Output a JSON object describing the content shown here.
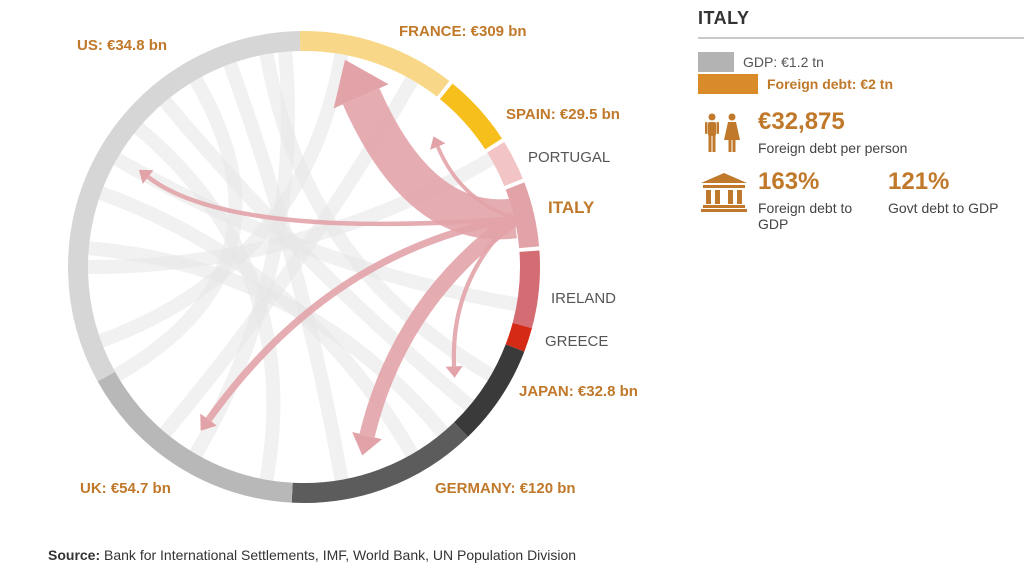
{
  "source_label": "Source:",
  "source_text": " Bank for International Settlements, IMF, World Bank, UN Population Division",
  "panel": {
    "country": "ITALY",
    "gdp_label": "GDP: €1.2 tn",
    "debt_label": "Foreign debt: €2 tn",
    "gdp_ratio": 0.6,
    "per_person_value": "€32,875",
    "per_person_label": "Foreign debt per person",
    "foreign_debt_gdp_value": "163%",
    "foreign_debt_gdp_label": "Foreign debt to GDP",
    "govt_debt_gdp_value": "121%",
    "govt_debt_gdp_label": "Govt debt to GDP",
    "icons": [
      "people-icon",
      "bank-icon"
    ]
  },
  "colors": {
    "accent": "#c0782a",
    "flow": "#e2a3a8",
    "gdp_swatch": "#b3b3b3",
    "debt_swatch": "#d98a2b"
  },
  "chart_data": {
    "type": "chord",
    "focus": "ITALY",
    "segments": [
      {
        "name": "FRANCE: €309 bn",
        "color": "#f8d888",
        "highlight": true
      },
      {
        "name": "SPAIN: €29.5 bn",
        "color": "#f7bf1c",
        "highlight": true
      },
      {
        "name": "PORTUGAL",
        "color": "#f2c4c6",
        "highlight": false
      },
      {
        "name": "ITALY",
        "color": "#e2a3a8",
        "highlight": true
      },
      {
        "name": "IRELAND",
        "color": "#d46c73",
        "highlight": false
      },
      {
        "name": "GREECE",
        "color": "#d42a16",
        "highlight": false
      },
      {
        "name": "JAPAN: €32.8 bn",
        "color": "#3a3a3a",
        "highlight": true
      },
      {
        "name": "GERMANY: €120 bn",
        "color": "#5c5c5c",
        "highlight": true
      },
      {
        "name": "UK: €54.7 bn",
        "color": "#b8b8b8",
        "highlight": true
      },
      {
        "name": "US: €34.8 bn",
        "color": "#d6d6d6",
        "highlight": true
      }
    ],
    "flows": [
      {
        "from": "ITALY",
        "to": "FRANCE: €309 bn",
        "value": 309
      },
      {
        "from": "ITALY",
        "to": "GERMANY: €120 bn",
        "value": 120
      },
      {
        "from": "ITALY",
        "to": "UK: €54.7 bn",
        "value": 54.7
      },
      {
        "from": "ITALY",
        "to": "US: €34.8 bn",
        "value": 34.8
      },
      {
        "from": "ITALY",
        "to": "JAPAN: €32.8 bn",
        "value": 32.8
      },
      {
        "from": "ITALY",
        "to": "SPAIN: €29.5 bn",
        "value": 29.5
      }
    ]
  }
}
